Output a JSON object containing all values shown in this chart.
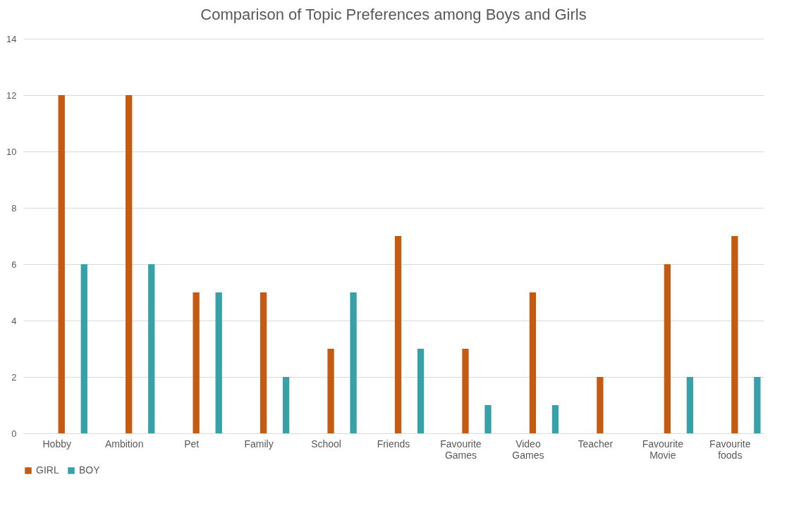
{
  "chart_data": {
    "type": "bar",
    "title": "Comparison of Topic Preferences among Boys and Girls",
    "categories": [
      "Hobby",
      "Ambition",
      "Pet",
      "Family",
      "School",
      "Friends",
      "Favourite Games",
      "Video Games",
      "Teacher",
      "Favourite Movie",
      "Favourite foods"
    ],
    "series": [
      {
        "name": "GIRL",
        "color": "#c55a11",
        "values": [
          12,
          12,
          5,
          5,
          3,
          7,
          3,
          5,
          2,
          6,
          7
        ]
      },
      {
        "name": "BOY",
        "color": "#36a1a8",
        "values": [
          6,
          6,
          5,
          2,
          5,
          3,
          1,
          1,
          0,
          2,
          2
        ]
      }
    ],
    "ylim": [
      0,
      14
    ],
    "yticks": [
      0,
      2,
      4,
      6,
      8,
      10,
      12,
      14
    ],
    "grid": "y",
    "legend": "bottom"
  }
}
